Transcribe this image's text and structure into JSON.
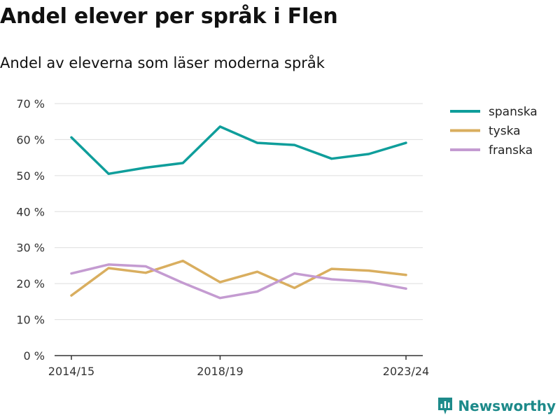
{
  "chart_data": {
    "type": "line",
    "title": "Andel elever per språk i Flen",
    "subtitle": "Andel av eleverna som läser moderna språk",
    "x": [
      "2014/15",
      "2015/16",
      "2016/17",
      "2017/18",
      "2018/19",
      "2019/20",
      "2020/21",
      "2021/22",
      "2022/23",
      "2023/24"
    ],
    "x_tick_labels": [
      "2014/15",
      "2018/19",
      "2023/24"
    ],
    "y_ticks": [
      0,
      10,
      20,
      30,
      40,
      50,
      60,
      70
    ],
    "y_tick_labels": [
      "0 %",
      "10 %",
      "20 %",
      "30 %",
      "40 %",
      "50 %",
      "60 %",
      "70 %"
    ],
    "ylim": [
      0,
      70
    ],
    "grid": true,
    "legend_position": "right",
    "series": [
      {
        "name": "spanska",
        "color": "#0f9e9b",
        "values": [
          60.6,
          50.5,
          52.2,
          53.5,
          63.6,
          59.1,
          58.5,
          54.7,
          56.0,
          59.1
        ]
      },
      {
        "name": "tyska",
        "color": "#d9ae5f",
        "values": [
          16.7,
          24.3,
          23.0,
          26.3,
          20.4,
          23.3,
          18.8,
          24.1,
          23.6,
          22.4
        ]
      },
      {
        "name": "franska",
        "color": "#c49bd1",
        "values": [
          22.8,
          25.3,
          24.8,
          20.2,
          16.0,
          17.8,
          22.8,
          21.2,
          20.5,
          18.6
        ]
      }
    ]
  },
  "brand": {
    "name": "Newsworthy",
    "icon": "newsworthy-logo-icon",
    "color": "#1d8a8a"
  }
}
